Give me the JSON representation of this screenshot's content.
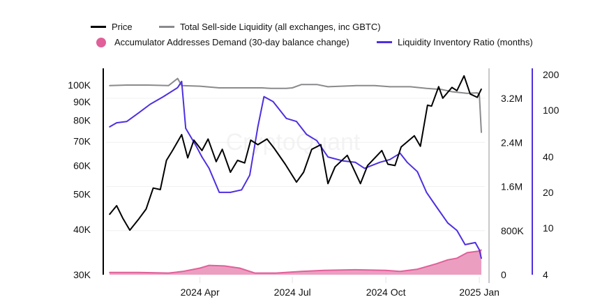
{
  "chart_data": {
    "type": "line",
    "watermark": "CryptoQuant",
    "legend_placement": "top",
    "grid": true,
    "x_ticks": [
      {
        "date": "2024-04-01",
        "label": "2024 Apr"
      },
      {
        "date": "2024-07-01",
        "label": "2024 Jul"
      },
      {
        "date": "2024-10-01",
        "label": "2024 Oct"
      },
      {
        "date": "2025-01-01",
        "label": "2025 Jan"
      }
    ],
    "x_range": [
      "2024-01-03",
      "2025-01-03"
    ],
    "axes": {
      "price": {
        "scale": "log",
        "range": [
          30000,
          100000
        ],
        "color": "#000000",
        "ticks": [
          {
            "v": 30000,
            "label": "30K"
          },
          {
            "v": 40000,
            "label": "40K"
          },
          {
            "v": 50000,
            "label": "50K"
          },
          {
            "v": 60000,
            "label": "60K"
          },
          {
            "v": 70000,
            "label": "70K"
          },
          {
            "v": 80000,
            "label": "80K"
          },
          {
            "v": 90000,
            "label": "90K"
          },
          {
            "v": 100000,
            "label": "100K"
          }
        ]
      },
      "liquidity": {
        "scale": "linear",
        "range": [
          0,
          3.2
        ],
        "unit": "M",
        "color": "#c8c8cc",
        "ticks": [
          {
            "v": 0,
            "label": "0"
          },
          {
            "v": 0.8,
            "label": "800K"
          },
          {
            "v": 1.6,
            "label": "1.6M"
          },
          {
            "v": 2.4,
            "label": "2.4M"
          },
          {
            "v": 3.2,
            "label": "3.2M"
          }
        ]
      },
      "ratio": {
        "scale": "log",
        "range": [
          4,
          200
        ],
        "color": "#4f2ee0",
        "ticks": [
          {
            "v": 4,
            "label": "4"
          },
          {
            "v": 10,
            "label": "10"
          },
          {
            "v": 20,
            "label": "20"
          },
          {
            "v": 40,
            "label": "40"
          },
          {
            "v": 100,
            "label": "100"
          },
          {
            "v": 200,
            "label": "200"
          }
        ]
      }
    },
    "series": [
      {
        "name": "Price",
        "axis": "price",
        "color": "#000000",
        "style": "line",
        "points": [
          [
            "2024-01-03",
            44000
          ],
          [
            "2024-01-10",
            46500
          ],
          [
            "2024-01-16",
            43000
          ],
          [
            "2024-01-23",
            39800
          ],
          [
            "2024-02-01",
            42800
          ],
          [
            "2024-02-08",
            45500
          ],
          [
            "2024-02-15",
            52000
          ],
          [
            "2024-02-22",
            51500
          ],
          [
            "2024-02-28",
            62000
          ],
          [
            "2024-03-05",
            66000
          ],
          [
            "2024-03-14",
            73000
          ],
          [
            "2024-03-20",
            63000
          ],
          [
            "2024-03-26",
            70500
          ],
          [
            "2024-04-03",
            66000
          ],
          [
            "2024-04-09",
            71000
          ],
          [
            "2024-04-17",
            61500
          ],
          [
            "2024-04-23",
            66500
          ],
          [
            "2024-05-01",
            57500
          ],
          [
            "2024-05-08",
            62000
          ],
          [
            "2024-05-15",
            61000
          ],
          [
            "2024-05-21",
            70500
          ],
          [
            "2024-05-28",
            68500
          ],
          [
            "2024-06-06",
            71000
          ],
          [
            "2024-06-13",
            67000
          ],
          [
            "2024-06-24",
            60500
          ],
          [
            "2024-07-05",
            54000
          ],
          [
            "2024-07-12",
            57500
          ],
          [
            "2024-07-20",
            66500
          ],
          [
            "2024-07-29",
            68500
          ],
          [
            "2024-08-05",
            53500
          ],
          [
            "2024-08-12",
            59500
          ],
          [
            "2024-08-24",
            64000
          ],
          [
            "2024-09-06",
            53500
          ],
          [
            "2024-09-13",
            60000
          ],
          [
            "2024-09-27",
            66000
          ],
          [
            "2024-10-03",
            60500
          ],
          [
            "2024-10-10",
            60000
          ],
          [
            "2024-10-16",
            67500
          ],
          [
            "2024-10-29",
            72500
          ],
          [
            "2024-11-04",
            67800
          ],
          [
            "2024-11-11",
            88000
          ],
          [
            "2024-11-15",
            87500
          ],
          [
            "2024-11-22",
            99000
          ],
          [
            "2024-11-26",
            92000
          ],
          [
            "2024-12-05",
            98500
          ],
          [
            "2024-12-10",
            96500
          ],
          [
            "2024-12-17",
            106000
          ],
          [
            "2024-12-23",
            94500
          ],
          [
            "2024-12-30",
            92500
          ],
          [
            "2025-01-03",
            97500
          ]
        ]
      },
      {
        "name": "Total Sell-side Liquidity (all exchanges, inc GBTC)",
        "axis": "liquidity",
        "color": "#8a8a8e",
        "style": "line",
        "points": [
          [
            "2024-01-03",
            3.43
          ],
          [
            "2024-01-20",
            3.44
          ],
          [
            "2024-02-10",
            3.44
          ],
          [
            "2024-03-01",
            3.43
          ],
          [
            "2024-03-10",
            3.56
          ],
          [
            "2024-03-14",
            3.43
          ],
          [
            "2024-04-01",
            3.42
          ],
          [
            "2024-04-20",
            3.39
          ],
          [
            "2024-05-10",
            3.39
          ],
          [
            "2024-06-01",
            3.39
          ],
          [
            "2024-06-10",
            3.38
          ],
          [
            "2024-06-25",
            3.38
          ],
          [
            "2024-07-01",
            3.39
          ],
          [
            "2024-07-10",
            3.45
          ],
          [
            "2024-07-25",
            3.45
          ],
          [
            "2024-08-05",
            3.41
          ],
          [
            "2024-09-01",
            3.43
          ],
          [
            "2024-09-20",
            3.43
          ],
          [
            "2024-10-05",
            3.41
          ],
          [
            "2024-10-25",
            3.41
          ],
          [
            "2024-11-10",
            3.38
          ],
          [
            "2024-11-25",
            3.36
          ],
          [
            "2024-12-05",
            3.32
          ],
          [
            "2024-12-20",
            3.29
          ],
          [
            "2024-12-30",
            3.3
          ],
          [
            "2025-01-01",
            3.27
          ],
          [
            "2025-01-03",
            2.58
          ]
        ]
      },
      {
        "name": "Accumulator Addresses Demand (30-day balance change)",
        "axis": "liquidity",
        "color": "#e0609a",
        "fill": "#ec9ec1",
        "style": "area",
        "points": [
          [
            "2024-01-03",
            0.04
          ],
          [
            "2024-02-01",
            0.04
          ],
          [
            "2024-03-01",
            0.03
          ],
          [
            "2024-03-15",
            0.06
          ],
          [
            "2024-04-01",
            0.12
          ],
          [
            "2024-04-10",
            0.17
          ],
          [
            "2024-04-25",
            0.16
          ],
          [
            "2024-05-10",
            0.12
          ],
          [
            "2024-05-25",
            0.03
          ],
          [
            "2024-06-15",
            0.03
          ],
          [
            "2024-07-10",
            0.06
          ],
          [
            "2024-08-01",
            0.08
          ],
          [
            "2024-09-01",
            0.09
          ],
          [
            "2024-10-01",
            0.08
          ],
          [
            "2024-10-15",
            0.06
          ],
          [
            "2024-11-01",
            0.1
          ],
          [
            "2024-11-20",
            0.2
          ],
          [
            "2024-12-01",
            0.27
          ],
          [
            "2024-12-10",
            0.3
          ],
          [
            "2024-12-20",
            0.4
          ],
          [
            "2025-01-01",
            0.43
          ],
          [
            "2025-01-03",
            0.45
          ]
        ]
      },
      {
        "name": "Liquidity Inventory Ratio (months)",
        "axis": "ratio",
        "color": "#4f2ee0",
        "style": "line",
        "points": [
          [
            "2024-01-03",
            72
          ],
          [
            "2024-01-10",
            78
          ],
          [
            "2024-01-20",
            80
          ],
          [
            "2024-02-01",
            95
          ],
          [
            "2024-02-12",
            112
          ],
          [
            "2024-02-25",
            130
          ],
          [
            "2024-03-10",
            155
          ],
          [
            "2024-03-14",
            175
          ],
          [
            "2024-03-18",
            70
          ],
          [
            "2024-03-28",
            50
          ],
          [
            "2024-04-03",
            40
          ],
          [
            "2024-04-10",
            32
          ],
          [
            "2024-04-20",
            20
          ],
          [
            "2024-05-01",
            20
          ],
          [
            "2024-05-12",
            21
          ],
          [
            "2024-05-20",
            28
          ],
          [
            "2024-05-28",
            72
          ],
          [
            "2024-06-03",
            130
          ],
          [
            "2024-06-12",
            118
          ],
          [
            "2024-06-25",
            85
          ],
          [
            "2024-07-05",
            80
          ],
          [
            "2024-07-15",
            62
          ],
          [
            "2024-07-25",
            55
          ],
          [
            "2024-08-05",
            40
          ],
          [
            "2024-08-20",
            37
          ],
          [
            "2024-09-01",
            36
          ],
          [
            "2024-09-10",
            32
          ],
          [
            "2024-09-25",
            36
          ],
          [
            "2024-10-05",
            38
          ],
          [
            "2024-10-15",
            43
          ],
          [
            "2024-10-22",
            36
          ],
          [
            "2024-11-01",
            30
          ],
          [
            "2024-11-10",
            20
          ],
          [
            "2024-11-20",
            15
          ],
          [
            "2024-12-01",
            11
          ],
          [
            "2024-12-10",
            9.5
          ],
          [
            "2024-12-18",
            7.2
          ],
          [
            "2024-12-28",
            7.5
          ],
          [
            "2025-01-01",
            6.5
          ],
          [
            "2025-01-03",
            5.5
          ]
        ]
      }
    ]
  },
  "legend": [
    {
      "label": "Price",
      "color": "#000000",
      "marker": "line"
    },
    {
      "label": "Total Sell-side Liquidity (all exchanges, inc GBTC)",
      "color": "#8a8a8e",
      "marker": "line"
    },
    {
      "label": "Accumulator Addresses Demand (30-day balance change)",
      "color": "#e0609a",
      "marker": "circle"
    },
    {
      "label": "Liquidity Inventory Ratio (months)",
      "color": "#4f2ee0",
      "marker": "line"
    }
  ]
}
